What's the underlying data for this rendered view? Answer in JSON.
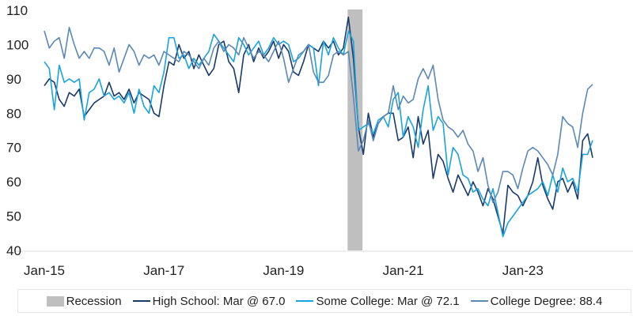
{
  "chart_data": {
    "type": "line",
    "x_start": "Jan-15",
    "frequency": "monthly",
    "x_ticks": [
      "Jan-15",
      "Jan-17",
      "Jan-19",
      "Jan-21",
      "Jan-23"
    ],
    "y_ticks": [
      40,
      50,
      60,
      70,
      80,
      90,
      100,
      110
    ],
    "ylim": [
      40,
      110
    ],
    "grid": false,
    "legend_position": "bottom",
    "recession": {
      "label": "Recession",
      "start": "Feb-20",
      "end": "Apr-20",
      "color": "#bfbfbf"
    },
    "series": [
      {
        "name": "High School: Mar @ 67.0",
        "color": "#1a3a6b",
        "values": [
          88,
          90,
          89,
          84,
          82,
          86,
          85,
          87,
          79,
          81,
          83,
          84,
          85,
          89,
          85,
          86,
          84,
          87,
          83,
          86,
          85,
          84,
          80,
          79,
          88,
          95,
          94,
          100,
          96,
          98,
          93,
          97,
          94,
          91,
          93,
          100,
          101,
          95,
          93,
          86,
          97,
          100,
          95,
          99,
          96,
          98,
          101,
          96,
          100,
          98,
          92,
          91,
          95,
          100,
          99,
          98,
          101,
          99,
          101,
          97,
          99,
          108,
          96,
          76,
          68,
          80,
          73,
          77,
          79,
          80,
          80,
          72,
          73,
          76,
          67,
          79,
          71,
          75,
          61,
          68,
          66,
          61,
          57,
          62,
          59,
          56,
          60,
          57,
          53,
          58,
          55,
          50,
          45,
          59,
          57,
          56,
          53,
          56,
          60,
          67,
          59,
          55,
          52,
          60,
          61,
          57,
          60,
          55,
          72,
          74,
          67.0
        ]
      },
      {
        "name": "Some College: Mar @ 72.1",
        "color": "#1aa3dc",
        "values": [
          95,
          93,
          81,
          94,
          89,
          90,
          89,
          90,
          78,
          86,
          87,
          90,
          85,
          86,
          84,
          85,
          83,
          86,
          80,
          87,
          82,
          80,
          88,
          86,
          92,
          102,
          102,
          96,
          97,
          93,
          96,
          94,
          96,
          98,
          103,
          101,
          99,
          97,
          95,
          102,
          100,
          97,
          99,
          101,
          97,
          99,
          102,
          100,
          101,
          100,
          95,
          96,
          98,
          100,
          99,
          88,
          101,
          97,
          102,
          99,
          97,
          104,
          101,
          75,
          76,
          77,
          74,
          78,
          79,
          76,
          84,
          86,
          73,
          79,
          76,
          70,
          81,
          88,
          75,
          79,
          77,
          62,
          70,
          68,
          62,
          61,
          57,
          58,
          55,
          53,
          58,
          51,
          44,
          48,
          50,
          52,
          54,
          56,
          57,
          58,
          60,
          56,
          62,
          57,
          64,
          60,
          61,
          57,
          68,
          68,
          72.1
        ]
      },
      {
        "name": "College Degree: 88.4",
        "color": "#5b88b5",
        "values": [
          104,
          99,
          101,
          102,
          96,
          105,
          100,
          96,
          98,
          96,
          99,
          99,
          98,
          94,
          99,
          92,
          96,
          100,
          98,
          94,
          97,
          96,
          97,
          94,
          98,
          97,
          96,
          95,
          98,
          97,
          95,
          93,
          96,
          94,
          99,
          101,
          98,
          100,
          99,
          97,
          102,
          99,
          96,
          98,
          97,
          95,
          98,
          101,
          96,
          89,
          93,
          97,
          98,
          100,
          92,
          89,
          89,
          91,
          97,
          98,
          97,
          98,
          85,
          69,
          72,
          78,
          72,
          77,
          79,
          80,
          88,
          81,
          85,
          83,
          84,
          90,
          93,
          90,
          94,
          84,
          78,
          76,
          75,
          73,
          75,
          71,
          69,
          63,
          67,
          59,
          54,
          57,
          63,
          63,
          62,
          58,
          64,
          69,
          70,
          69,
          67,
          65,
          62,
          68,
          79,
          77,
          76,
          70,
          80,
          87,
          88.4
        ]
      }
    ]
  }
}
